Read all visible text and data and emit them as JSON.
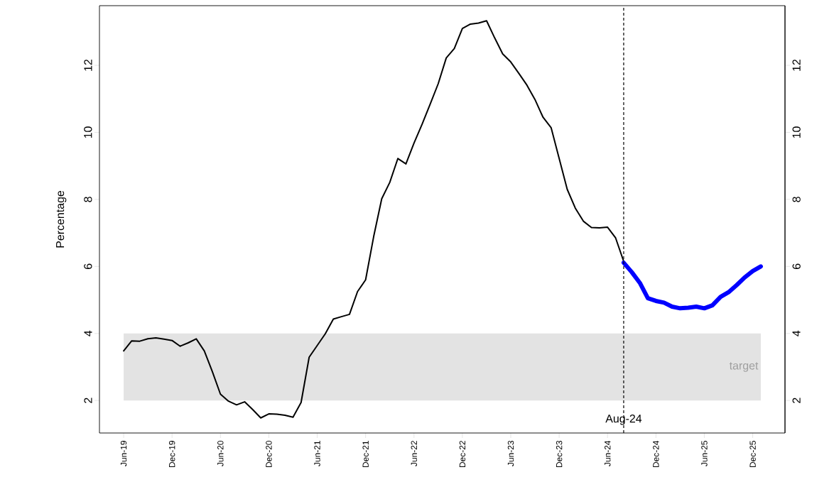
{
  "chart_data": {
    "type": "line",
    "ylabel": "Percentage",
    "x": [
      "2019-06",
      "2019-07",
      "2019-08",
      "2019-09",
      "2019-10",
      "2019-11",
      "2019-12",
      "2020-01",
      "2020-02",
      "2020-03",
      "2020-04",
      "2020-05",
      "2020-06",
      "2020-07",
      "2020-08",
      "2020-09",
      "2020-10",
      "2020-11",
      "2020-12",
      "2021-01",
      "2021-02",
      "2021-03",
      "2021-04",
      "2021-05",
      "2021-06",
      "2021-07",
      "2021-08",
      "2021-09",
      "2021-10",
      "2021-11",
      "2021-12",
      "2022-01",
      "2022-02",
      "2022-03",
      "2022-04",
      "2022-05",
      "2022-06",
      "2022-07",
      "2022-08",
      "2022-09",
      "2022-10",
      "2022-11",
      "2022-12",
      "2023-01",
      "2023-02",
      "2023-03",
      "2023-04",
      "2023-05",
      "2023-06",
      "2023-07",
      "2023-08",
      "2023-09",
      "2023-10",
      "2023-11",
      "2023-12",
      "2024-01",
      "2024-02",
      "2024-03",
      "2024-04",
      "2024-05",
      "2024-06",
      "2024-07",
      "2024-08"
    ],
    "series": [
      {
        "color": "#000000",
        "values": [
          3.48,
          3.78,
          3.77,
          3.84,
          3.87,
          3.83,
          3.79,
          3.62,
          3.72,
          3.84,
          3.48,
          2.86,
          2.19,
          1.98,
          1.87,
          1.96,
          1.73,
          1.48,
          1.6,
          1.59,
          1.56,
          1.5,
          1.94,
          3.29,
          3.64,
          3.99,
          4.43,
          4.5,
          4.57,
          5.25,
          5.6,
          6.89,
          8.02,
          8.51,
          9.22,
          9.06,
          9.68,
          10.24,
          10.84,
          11.45,
          12.22,
          12.5,
          13.1,
          13.23,
          13.26,
          13.33,
          12.82,
          12.34,
          12.1,
          11.76,
          11.41,
          10.98,
          10.45,
          10.14,
          9.22,
          8.3,
          7.74,
          7.35,
          7.16,
          7.15,
          7.17,
          6.85,
          6.15
        ]
      },
      {
        "color": "#0000ff",
        "x": [
          "2024-08",
          "2024-09",
          "2024-10",
          "2024-11",
          "2024-12",
          "2025-01",
          "2025-02",
          "2025-03",
          "2025-04",
          "2025-05",
          "2025-06",
          "2025-07",
          "2025-08",
          "2025-09",
          "2025-10",
          "2025-11",
          "2025-12",
          "2026-01"
        ],
        "values": [
          6.11,
          5.83,
          5.51,
          5.05,
          4.97,
          4.92,
          4.8,
          4.75,
          4.77,
          4.8,
          4.75,
          4.84,
          5.09,
          5.23,
          5.44,
          5.67,
          5.86,
          6.0
        ]
      }
    ],
    "xlim": [
      "2019-03",
      "2026-04"
    ],
    "xticks": [
      {
        "value": "2019-06",
        "label": "Jun-19"
      },
      {
        "value": "2019-12",
        "label": "Dec-19"
      },
      {
        "value": "2020-06",
        "label": "Jun-20"
      },
      {
        "value": "2020-12",
        "label": "Dec-20"
      },
      {
        "value": "2021-06",
        "label": "Jun-21"
      },
      {
        "value": "2021-12",
        "label": "Dec-21"
      },
      {
        "value": "2022-06",
        "label": "Jun-22"
      },
      {
        "value": "2022-12",
        "label": "Dec-22"
      },
      {
        "value": "2023-06",
        "label": "Jun-23"
      },
      {
        "value": "2023-12",
        "label": "Dec-23"
      },
      {
        "value": "2024-06",
        "label": "Jun-24"
      },
      {
        "value": "2024-12",
        "label": "Dec-24"
      },
      {
        "value": "2025-06",
        "label": "Jun-25"
      },
      {
        "value": "2025-12",
        "label": "Dec-25"
      }
    ],
    "ylim": [
      1.03,
      13.78
    ],
    "yticks": [
      2,
      4,
      6,
      8,
      10,
      12
    ],
    "y2lim": [
      1.03,
      13.78
    ],
    "y2ticks": [
      2,
      4,
      6,
      8,
      10,
      12
    ],
    "ref_lines": [
      {
        "axis": "x",
        "value": "2024-08",
        "label": "Aug-24",
        "line_style": "dashed"
      }
    ],
    "bands": [
      {
        "axis": "y",
        "from": 2,
        "to": 4,
        "label": "target",
        "color": "#e3e3e3"
      }
    ],
    "grid": false
  }
}
